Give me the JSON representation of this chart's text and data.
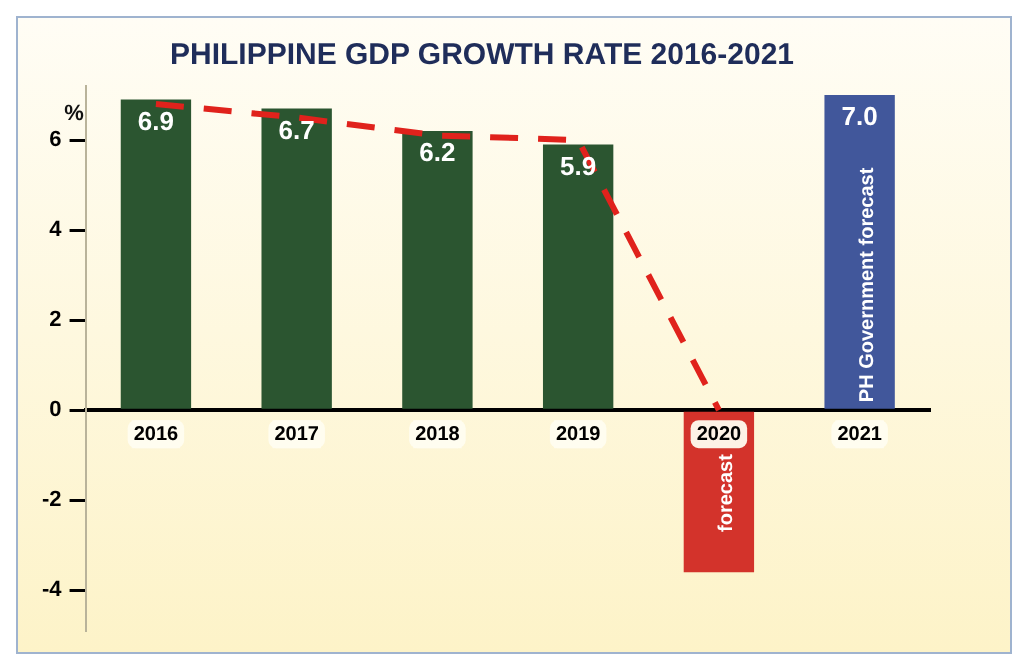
{
  "chart_data": {
    "type": "bar",
    "title": "PHILIPPINE GDP GROWTH RATE 2016-2021",
    "ylabel": "%",
    "categories": [
      "2016",
      "2017",
      "2018",
      "2019",
      "2020",
      "2021"
    ],
    "series": [
      {
        "colors": [
          "#2b5530",
          "#2b5530",
          "#2b5530",
          "#2b5530",
          "#d3332b",
          "#41579b"
        ],
        "values": [
          6.9,
          6.7,
          6.2,
          5.9,
          -3.6,
          7.0
        ],
        "value_labels": [
          "6.9",
          "6.7",
          "6.2",
          "5.9",
          null,
          "7.0"
        ]
      },
      {
        "type": "line",
        "color": "#e0221c",
        "line_style": "dashed",
        "marker": "none",
        "values": [
          6.8,
          6.5,
          6.1,
          6.0,
          0,
          null
        ]
      }
    ],
    "ylim": [
      -4.9,
      7.2
    ],
    "yticks": [
      -4,
      -2,
      0,
      2,
      4,
      6
    ],
    "grid": false,
    "legend": false,
    "annotations": [
      "forecast",
      "PH Government forecast"
    ]
  }
}
